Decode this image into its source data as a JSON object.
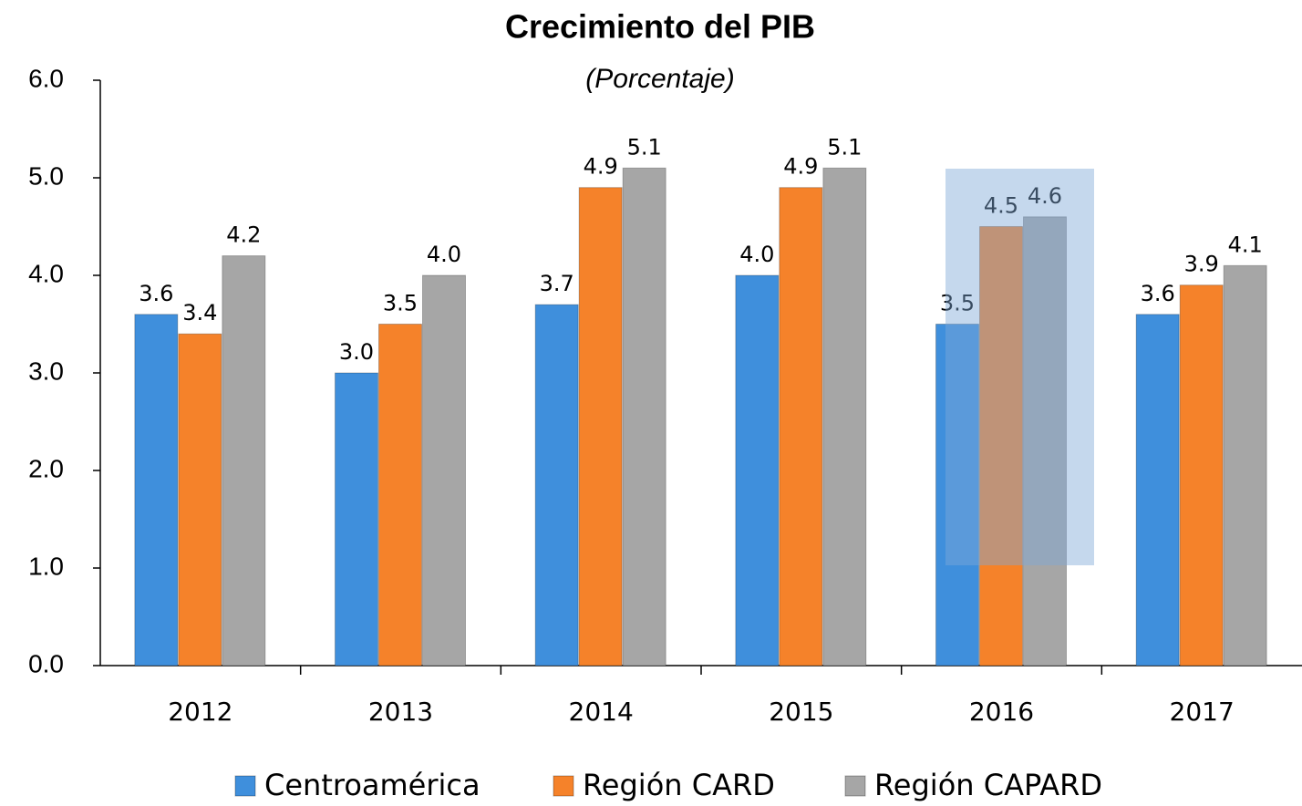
{
  "chart_data": {
    "type": "bar",
    "title": "Crecimiento del PIB",
    "subtitle": "(Porcentaje)",
    "categories": [
      "2012",
      "2013",
      "2014",
      "2015",
      "2016",
      "2017"
    ],
    "series": [
      {
        "name": "Centroamérica",
        "color": "#3f8fdc",
        "values": [
          3.6,
          3.0,
          3.7,
          4.0,
          3.5,
          3.6
        ],
        "value_labels": [
          "3.6",
          "3.0",
          "3.7",
          "4.0",
          "3.5",
          "3.6"
        ]
      },
      {
        "name": "Región CARD",
        "color": "#f5822a",
        "values": [
          3.4,
          3.5,
          4.9,
          4.9,
          4.5,
          3.9
        ],
        "value_labels": [
          "3.4",
          "3.5",
          "4.9",
          "4.9",
          "4.5",
          "3.9"
        ]
      },
      {
        "name": "Región CAPARD",
        "color": "#a6a6a6",
        "values": [
          4.2,
          4.0,
          5.1,
          5.1,
          4.6,
          4.1
        ],
        "value_labels": [
          "4.2",
          "4.0",
          "5.1",
          "5.1",
          "4.6",
          "4.1"
        ]
      }
    ],
    "ylim": [
      0,
      6
    ],
    "yticks": [
      {
        "value": 0,
        "label": "0.0"
      },
      {
        "value": 1,
        "label": "1.0"
      },
      {
        "value": 2,
        "label": "2.0"
      },
      {
        "value": 3,
        "label": "3.0"
      },
      {
        "value": 4,
        "label": "4.0"
      },
      {
        "value": 5,
        "label": "5.0"
      },
      {
        "value": 6,
        "label": "6.0"
      }
    ],
    "legend": "bottom"
  }
}
